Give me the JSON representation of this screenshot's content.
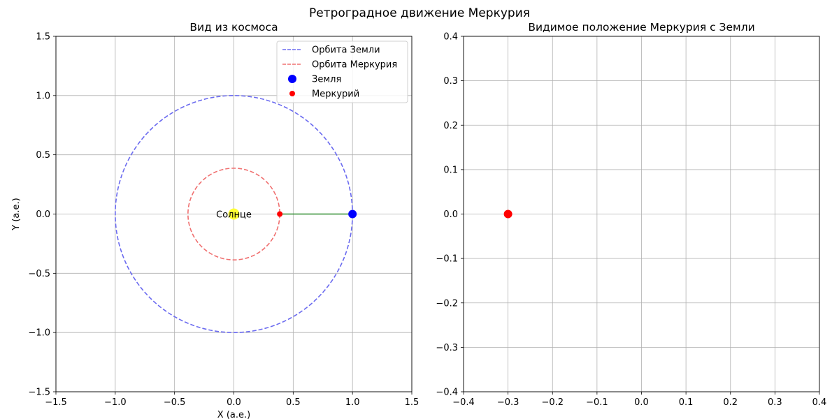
{
  "figure": {
    "suptitle": "Ретроградное движение Меркурия"
  },
  "chart_data": [
    {
      "type": "scatter",
      "title": "Вид из космоса",
      "xlabel": "X (а.е.)",
      "ylabel": "Y (а.е.)",
      "xlim": [
        -1.5,
        1.5
      ],
      "ylim": [
        -1.5,
        1.5
      ],
      "xticks": [
        -1.5,
        -1.0,
        -0.5,
        0.0,
        0.5,
        1.0,
        1.5
      ],
      "yticks": [
        -1.5,
        -1.0,
        -0.5,
        0.0,
        0.5,
        1.0,
        1.5
      ],
      "xtick_labels": [
        "−1.5",
        "−1.0",
        "−0.5",
        "0.0",
        "0.5",
        "1.0",
        "1.5"
      ],
      "ytick_labels": [
        "−1.5",
        "−1.0",
        "−0.5",
        "0.0",
        "0.5",
        "1.0",
        "1.5"
      ],
      "grid": true,
      "legend_position": "top-right",
      "orbits": [
        {
          "name": "Орбита Земли",
          "radius": 1.0,
          "color": "#6b6bf0",
          "style": "dashed"
        },
        {
          "name": "Орбита Меркурия",
          "radius": 0.387,
          "color": "#f07070",
          "style": "dashed"
        }
      ],
      "bodies": [
        {
          "name": "Земля",
          "x": 1.0,
          "y": 0.0,
          "color": "#0000ff",
          "size": "large"
        },
        {
          "name": "Меркурий",
          "x": 0.387,
          "y": 0.0,
          "color": "#ff0000",
          "size": "small"
        }
      ],
      "sun": {
        "label": "Солнце",
        "x": 0.0,
        "y": 0.0,
        "color": "#ffff33"
      },
      "line_of_sight": {
        "from": [
          1.0,
          0.0
        ],
        "to": [
          0.387,
          0.0
        ],
        "color": "#2e8b2e"
      }
    },
    {
      "type": "scatter",
      "title": "Видимое положение Меркурия с Земли",
      "xlabel": "",
      "ylabel": "",
      "xlim": [
        -0.4,
        0.4
      ],
      "ylim": [
        -0.4,
        0.4
      ],
      "xticks": [
        -0.4,
        -0.3,
        -0.2,
        -0.1,
        0.0,
        0.1,
        0.2,
        0.3,
        0.4
      ],
      "yticks": [
        -0.4,
        -0.3,
        -0.2,
        -0.1,
        0.0,
        0.1,
        0.2,
        0.3,
        0.4
      ],
      "xtick_labels": [
        "−0.4",
        "−0.3",
        "−0.2",
        "−0.1",
        "0.0",
        "0.1",
        "0.2",
        "0.3",
        "0.4"
      ],
      "ytick_labels": [
        "−0.4",
        "−0.3",
        "−0.2",
        "−0.1",
        "0.0",
        "0.1",
        "0.2",
        "0.3",
        "0.4"
      ],
      "grid": true,
      "points": [
        {
          "x": -0.3,
          "y": 0.0,
          "color": "#ff0000"
        }
      ]
    }
  ]
}
